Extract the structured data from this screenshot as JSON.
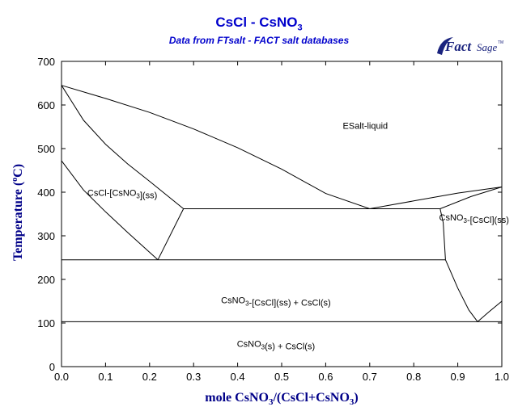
{
  "title": "CsCl - CsNO",
  "title_sub": "3",
  "subtitle": "Data from FTsalt - FACT salt databases",
  "logo": {
    "text": "FactSage",
    "mark": "TM",
    "color": "#1a237e"
  },
  "colors": {
    "title": "#0000cc",
    "axis_title": "#000088",
    "lines": "#000000"
  },
  "chart_data": {
    "type": "phase-diagram",
    "xlim": [
      0,
      1.0
    ],
    "ylim": [
      0,
      700
    ],
    "x_ticks": [
      "0.0",
      "0.1",
      "0.2",
      "0.3",
      "0.4",
      "0.5",
      "0.6",
      "0.7",
      "0.8",
      "0.9",
      "1.0"
    ],
    "y_ticks": [
      "0",
      "100",
      "200",
      "300",
      "400",
      "500",
      "600",
      "700"
    ],
    "xlabel": {
      "a": "mole CsNO",
      "a_sub": "3",
      "b": "/(CsCl+CsNO",
      "b_sub": "3",
      "c": ")"
    },
    "ylabel": {
      "a": "Temperature (",
      "deg": "o",
      "b": "C)"
    },
    "regions": [
      {
        "id": "esalt-liquid",
        "x": 0.69,
        "y": 545,
        "parts": [
          {
            "t": "ESalt-liquid"
          }
        ]
      },
      {
        "id": "cscl-ss",
        "x": 0.138,
        "y": 392,
        "parts": [
          {
            "t": "CsCl-[CsNO"
          },
          {
            "t": "3",
            "sub": true
          },
          {
            "t": "](ss)"
          }
        ]
      },
      {
        "id": "csno3-ss",
        "x": 0.937,
        "y": 335,
        "parts": [
          {
            "t": "CsNO"
          },
          {
            "t": "3",
            "sub": true
          },
          {
            "t": "-[CsCl](ss)"
          }
        ]
      },
      {
        "id": "csno3-ss-plus-cscl",
        "x": 0.487,
        "y": 145,
        "parts": [
          {
            "t": "CsNO"
          },
          {
            "t": "3",
            "sub": true
          },
          {
            "t": "-[CsCl](ss) + CsCl(s)"
          }
        ]
      },
      {
        "id": "csno3-s-plus-cscl",
        "x": 0.487,
        "y": 45,
        "parts": [
          {
            "t": "CsNO"
          },
          {
            "t": "3",
            "sub": true
          },
          {
            "t": "(s) + CsCl(s)"
          }
        ]
      }
    ],
    "lines": [
      {
        "id": "liquidus-left",
        "points": [
          [
            0,
            645
          ],
          [
            0.1,
            615
          ],
          [
            0.2,
            583
          ],
          [
            0.3,
            545
          ],
          [
            0.4,
            502
          ],
          [
            0.5,
            453
          ],
          [
            0.6,
            397
          ],
          [
            0.7,
            362
          ]
        ]
      },
      {
        "id": "liquidus-right",
        "points": [
          [
            0.7,
            362
          ],
          [
            0.8,
            380
          ],
          [
            0.9,
            398
          ],
          [
            1.0,
            412
          ]
        ]
      },
      {
        "id": "solidus-left",
        "points": [
          [
            0,
            645
          ],
          [
            0.05,
            565
          ],
          [
            0.1,
            510
          ],
          [
            0.15,
            465
          ],
          [
            0.2,
            425
          ],
          [
            0.277,
            362
          ]
        ]
      },
      {
        "id": "solvus-left",
        "points": [
          [
            0,
            472
          ],
          [
            0.05,
            405
          ],
          [
            0.1,
            355
          ],
          [
            0.15,
            308
          ],
          [
            0.219,
            245
          ]
        ]
      },
      {
        "id": "solvus-left-upper",
        "points": [
          [
            0.219,
            245
          ],
          [
            0.277,
            362
          ]
        ]
      },
      {
        "id": "eutectic",
        "points": [
          [
            0.277,
            362
          ],
          [
            0.86,
            362
          ]
        ]
      },
      {
        "id": "solidus-right",
        "points": [
          [
            0.86,
            362
          ],
          [
            0.93,
            390
          ],
          [
            1.0,
            412
          ]
        ]
      },
      {
        "id": "solvus-right",
        "points": [
          [
            0.86,
            362
          ],
          [
            0.867,
            330
          ],
          [
            0.872,
            245
          ]
        ]
      },
      {
        "id": "transition-245",
        "points": [
          [
            0,
            245
          ],
          [
            0.872,
            245
          ]
        ]
      },
      {
        "id": "solvus-right-lower",
        "points": [
          [
            0.872,
            245
          ],
          [
            0.9,
            180
          ],
          [
            0.925,
            130
          ],
          [
            0.945,
            103
          ]
        ]
      },
      {
        "id": "right-rise",
        "points": [
          [
            0.945,
            103
          ],
          [
            0.97,
            125
          ],
          [
            1.0,
            150
          ]
        ]
      },
      {
        "id": "transition-103",
        "points": [
          [
            0,
            103
          ],
          [
            1.0,
            103
          ]
        ]
      }
    ]
  }
}
